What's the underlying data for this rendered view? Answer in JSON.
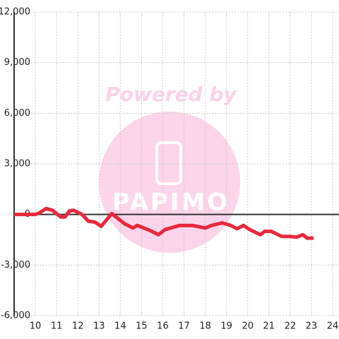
{
  "chart_data": {
    "type": "line",
    "watermark": "Powered by",
    "watermark_logo": "PAPIMO",
    "x": [
      9,
      10,
      10.2,
      10.5,
      10.8,
      11.2,
      11.4,
      11.6,
      11.8,
      12.2,
      12.5,
      12.8,
      13.1,
      13.6,
      14.2,
      14.6,
      14.8,
      15.4,
      15.8,
      16.1,
      16.8,
      17.4,
      18.0,
      18.3,
      18.8,
      19.2,
      19.5,
      19.8,
      20.1,
      20.6,
      20.8,
      21.1,
      21.6,
      22.0,
      22.3,
      22.6,
      22.8,
      23.1
    ],
    "series": [
      {
        "color": "#e8283c",
        "values": [
          0,
          0,
          100,
          350,
          250,
          -150,
          -150,
          200,
          250,
          0,
          -400,
          -450,
          -700,
          50,
          -550,
          -800,
          -650,
          -950,
          -1200,
          -900,
          -650,
          -650,
          -800,
          -650,
          -500,
          -650,
          -850,
          -650,
          -900,
          -1200,
          -1000,
          -1000,
          -1300,
          -1300,
          -1350,
          -1200,
          -1400,
          -1400
        ]
      }
    ],
    "xlim": [
      9,
      24.3
    ],
    "xticks": [
      10,
      11,
      12,
      13,
      14,
      15,
      16,
      17,
      18,
      19,
      20,
      21,
      22,
      23,
      24
    ],
    "ylim": [
      -6000,
      12000
    ],
    "yticks": [
      {
        "value": -6000,
        "label": "-6,000"
      },
      {
        "value": -3000,
        "label": "-3,000"
      },
      0,
      {
        "value": 3000,
        "label": "3,000"
      },
      {
        "value": 6000,
        "label": "6,000"
      },
      {
        "value": 9000,
        "label": "9,000"
      },
      {
        "value": 12000,
        "label": "12,000"
      }
    ],
    "grid": true
  }
}
